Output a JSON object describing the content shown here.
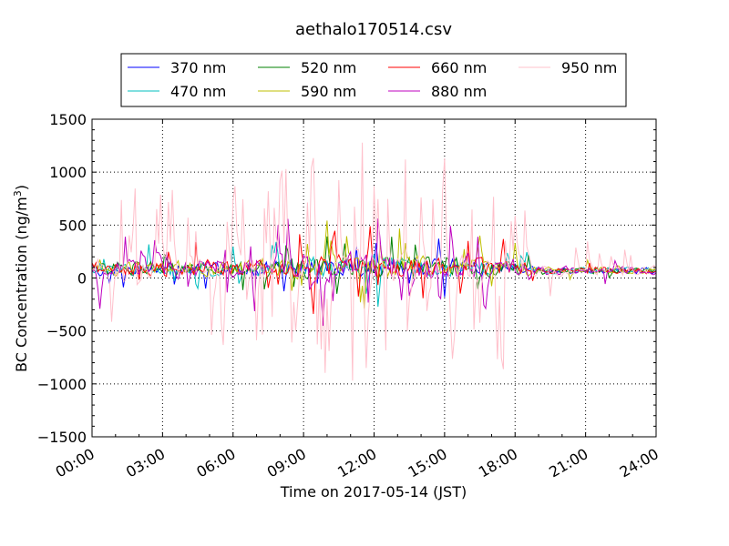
{
  "chart_data": {
    "type": "line",
    "title": "aethalo170514.csv",
    "xlabel": "Time on 2017-05-14 (JST)",
    "ylabel_main": "BC Concentration (ng/m",
    "ylabel_sup": "3",
    "ylabel_close": ")",
    "xlim_hours": [
      0,
      24
    ],
    "ylim": [
      -1500,
      1500
    ],
    "x_ticks": [
      {
        "hour": 0,
        "label": "00:00"
      },
      {
        "hour": 3,
        "label": "03:00"
      },
      {
        "hour": 6,
        "label": "06:00"
      },
      {
        "hour": 9,
        "label": "09:00"
      },
      {
        "hour": 12,
        "label": "12:00"
      },
      {
        "hour": 15,
        "label": "15:00"
      },
      {
        "hour": 18,
        "label": "18:00"
      },
      {
        "hour": 21,
        "label": "21:00"
      },
      {
        "hour": 24,
        "label": "24:00"
      }
    ],
    "y_ticks": [
      {
        "value": 1500,
        "label": "1500"
      },
      {
        "value": 1000,
        "label": "1000"
      },
      {
        "value": 500,
        "label": "500"
      },
      {
        "value": 0,
        "label": "0"
      },
      {
        "value": -500,
        "label": "−500"
      },
      {
        "value": -1000,
        "label": "−1000"
      },
      {
        "value": -1500,
        "label": "−1500"
      }
    ],
    "grid": true,
    "legend_position": "top-center",
    "series": [
      {
        "name": "370 nm",
        "color": "#0000ff",
        "seed": 11,
        "base": 90,
        "amp": 90,
        "spike_prob": 0.05,
        "spike_amp": 300
      },
      {
        "name": "470 nm",
        "color": "#00bfbf",
        "seed": 23,
        "base": 90,
        "amp": 90,
        "spike_prob": 0.05,
        "spike_amp": 300
      },
      {
        "name": "520 nm",
        "color": "#008000",
        "seed": 37,
        "base": 90,
        "amp": 95,
        "spike_prob": 0.06,
        "spike_amp": 320
      },
      {
        "name": "590 nm",
        "color": "#bfbf00",
        "seed": 41,
        "base": 90,
        "amp": 95,
        "spike_prob": 0.06,
        "spike_amp": 330
      },
      {
        "name": "660 nm",
        "color": "#ff0000",
        "seed": 53,
        "base": 95,
        "amp": 100,
        "spike_prob": 0.06,
        "spike_amp": 340
      },
      {
        "name": "880 nm",
        "color": "#bf00bf",
        "seed": 67,
        "base": 90,
        "amp": 130,
        "spike_prob": 0.12,
        "spike_amp": 520
      },
      {
        "name": "950 nm",
        "color": "#ffc0cb",
        "seed": 79,
        "base": 90,
        "amp": 140,
        "spike_prob": 0.22,
        "spike_amp": 1100
      }
    ],
    "activity_profile": [
      {
        "hour": 0,
        "level": 0.9
      },
      {
        "hour": 6,
        "level": 1.0
      },
      {
        "hour": 8,
        "level": 1.3
      },
      {
        "hour": 12,
        "level": 1.5
      },
      {
        "hour": 16,
        "level": 1.2
      },
      {
        "hour": 18.5,
        "level": 0.9
      },
      {
        "hour": 19,
        "level": 0.45
      },
      {
        "hour": 24,
        "level": 0.45
      }
    ],
    "sample_interval_minutes": 5
  }
}
